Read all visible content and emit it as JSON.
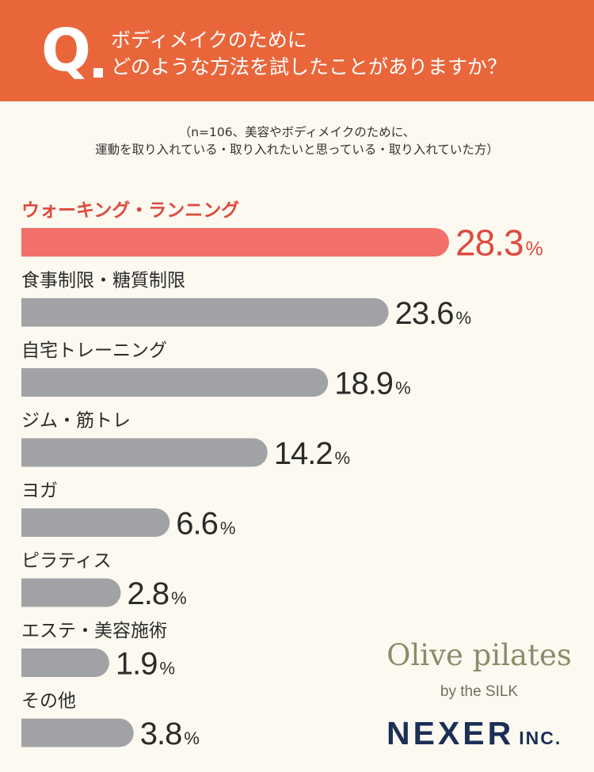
{
  "header": {
    "q_letter": "Q",
    "question_line1": "ボディメイクのために",
    "question_line2": "どのような方法を試したことがありますか？"
  },
  "note": {
    "line1": "（n=106、美容やボディメイクのために、",
    "line2": "運動を取り入れている・取り入れたいと思っている・取り入れていた方）"
  },
  "colors": {
    "header_bg": "#e9663b",
    "highlight_bar": "#f1716a",
    "highlight_text": "#de4a3e",
    "bar": "#a1a2a6",
    "background": "#fcfaf0"
  },
  "chart_data": {
    "type": "bar",
    "orientation": "horizontal",
    "unit": "%",
    "categories": [
      "ウォーキング・ランニング",
      "食事制限・糖質制限",
      "自宅トレーニング",
      "ジム・筋トレ",
      "ヨガ",
      "ピラティス",
      "エステ・美容施術",
      "その他"
    ],
    "values": [
      28.3,
      23.6,
      18.9,
      14.2,
      6.6,
      2.8,
      1.9,
      3.8
    ],
    "value_labels": [
      "28.3",
      "23.6",
      "18.9",
      "14.2",
      "6.6",
      "2.8",
      "1.9",
      "3.8"
    ],
    "highlight_index": 0
  },
  "brand": {
    "olive": "Olive pilates",
    "olive_sub": "by the SILK",
    "nexer": "NEXER",
    "nexer_inc": "INC."
  }
}
